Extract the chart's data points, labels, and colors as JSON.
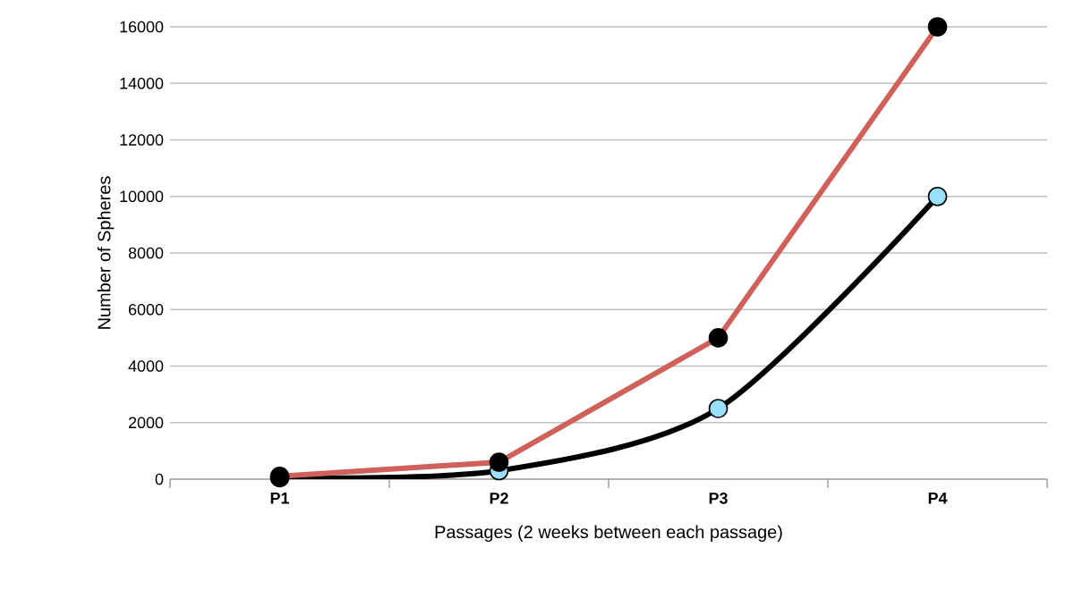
{
  "chart_data": {
    "type": "line",
    "xlabel": "Passages (2 weeks between each passage)",
    "ylabel": "Number of Spheres",
    "categories": [
      "P1",
      "P2",
      "P3",
      "P4"
    ],
    "series": [
      {
        "color": "#d0605a",
        "values": [
          100,
          600,
          5000,
          16000
        ]
      },
      {
        "color": "#000000",
        "values": [
          50,
          300,
          2500,
          10000
        ]
      }
    ],
    "ylim": [
      0,
      16000
    ],
    "yticks": [
      0,
      2000,
      4000,
      6000,
      8000,
      10000,
      12000,
      14000,
      16000
    ],
    "grid": "y",
    "marker": "circle",
    "line_style": "solid"
  }
}
